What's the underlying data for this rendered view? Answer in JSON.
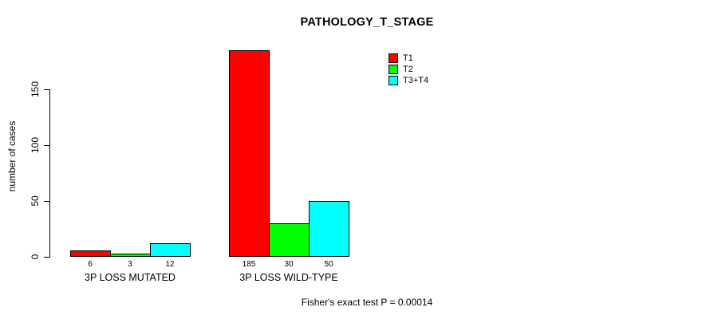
{
  "chart_data": {
    "type": "bar",
    "title": "PATHOLOGY_T_STAGE",
    "ylabel": "number of cases",
    "xlabel": "",
    "ylim": [
      0,
      195
    ],
    "yticks": [
      0,
      50,
      100,
      150
    ],
    "grid": false,
    "legend_position": "top-right",
    "categories": [
      "3P LOSS MUTATED",
      "3P LOSS WILD-TYPE"
    ],
    "series": [
      {
        "name": "T1",
        "color": "#FF0000",
        "values": [
          6,
          185
        ]
      },
      {
        "name": "T2",
        "color": "#00FF00",
        "values": [
          3,
          30
        ]
      },
      {
        "name": "T3+T4",
        "color": "#00FFFF",
        "values": [
          12,
          50
        ]
      }
    ],
    "bar_value_labels": [
      [
        "6",
        "3",
        "12"
      ],
      [
        "185",
        "30",
        "50"
      ]
    ],
    "annotation": "Fisher's exact test P = 0.00014"
  }
}
